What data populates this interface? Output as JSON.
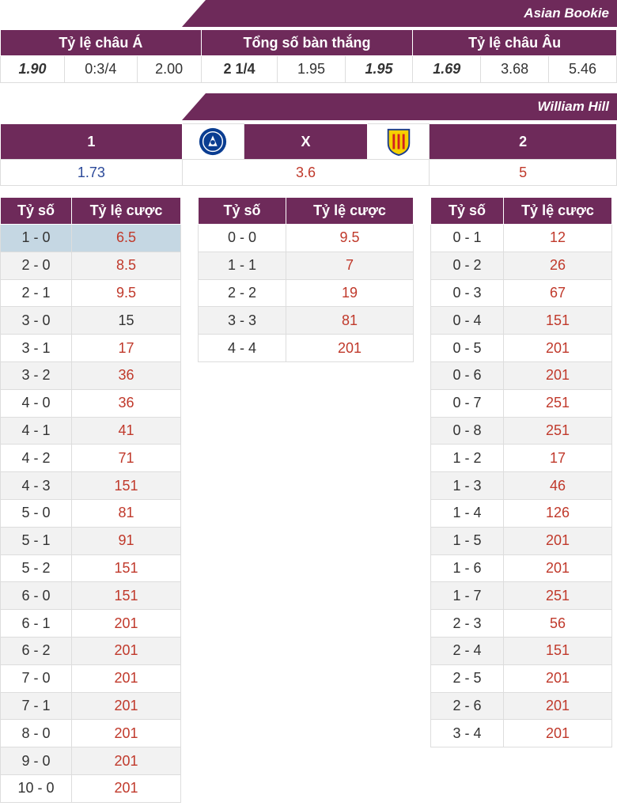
{
  "asian_bookie": {
    "title": "Asian Bookie",
    "headers": [
      "Tỷ lệ châu Á",
      "Tổng số bàn thắng",
      "Tỷ lệ châu Âu"
    ],
    "asian": [
      "1.90",
      "0:3/4",
      "2.00"
    ],
    "total": [
      "2 1/4",
      "1.95",
      "1.95"
    ],
    "euro": [
      "1.69",
      "3.68",
      "5.46"
    ]
  },
  "william_hill": {
    "title": "William Hill",
    "home_label": "1",
    "draw_label": "X",
    "away_label": "2",
    "home_logo": "chelsea-crest-icon",
    "away_logo": "villarreal-crest-icon",
    "home_odd": "1.73",
    "draw_odd": "3.6",
    "away_odd": "5"
  },
  "score_headers": {
    "score": "Tỷ số",
    "odds": "Tỷ lệ cược"
  },
  "home_wins": [
    {
      "score": "1 - 0",
      "odd": "6.5"
    },
    {
      "score": "2 - 0",
      "odd": "8.5"
    },
    {
      "score": "2 - 1",
      "odd": "9.5"
    },
    {
      "score": "3 - 0",
      "odd": "15"
    },
    {
      "score": "3 - 1",
      "odd": "17"
    },
    {
      "score": "3 - 2",
      "odd": "36"
    },
    {
      "score": "4 - 0",
      "odd": "36"
    },
    {
      "score": "4 - 1",
      "odd": "41"
    },
    {
      "score": "4 - 2",
      "odd": "71"
    },
    {
      "score": "4 - 3",
      "odd": "151"
    },
    {
      "score": "5 - 0",
      "odd": "81"
    },
    {
      "score": "5 - 1",
      "odd": "91"
    },
    {
      "score": "5 - 2",
      "odd": "151"
    },
    {
      "score": "6 - 0",
      "odd": "151"
    },
    {
      "score": "6 - 1",
      "odd": "201"
    },
    {
      "score": "6 - 2",
      "odd": "201"
    },
    {
      "score": "7 - 0",
      "odd": "201"
    },
    {
      "score": "7 - 1",
      "odd": "201"
    },
    {
      "score": "8 - 0",
      "odd": "201"
    },
    {
      "score": "9 - 0",
      "odd": "201"
    },
    {
      "score": "10 - 0",
      "odd": "201"
    }
  ],
  "draws": [
    {
      "score": "0 - 0",
      "odd": "9.5"
    },
    {
      "score": "1 - 1",
      "odd": "7"
    },
    {
      "score": "2 - 2",
      "odd": "19"
    },
    {
      "score": "3 - 3",
      "odd": "81"
    },
    {
      "score": "4 - 4",
      "odd": "201"
    }
  ],
  "away_wins": [
    {
      "score": "0 - 1",
      "odd": "12"
    },
    {
      "score": "0 - 2",
      "odd": "26"
    },
    {
      "score": "0 - 3",
      "odd": "67"
    },
    {
      "score": "0 - 4",
      "odd": "151"
    },
    {
      "score": "0 - 5",
      "odd": "201"
    },
    {
      "score": "0 - 6",
      "odd": "201"
    },
    {
      "score": "0 - 7",
      "odd": "251"
    },
    {
      "score": "0 - 8",
      "odd": "251"
    },
    {
      "score": "1 - 2",
      "odd": "17"
    },
    {
      "score": "1 - 3",
      "odd": "46"
    },
    {
      "score": "1 - 4",
      "odd": "126"
    },
    {
      "score": "1 - 5",
      "odd": "201"
    },
    {
      "score": "1 - 6",
      "odd": "201"
    },
    {
      "score": "1 - 7",
      "odd": "251"
    },
    {
      "score": "2 - 3",
      "odd": "56"
    },
    {
      "score": "2 - 4",
      "odd": "151"
    },
    {
      "score": "2 - 5",
      "odd": "201"
    },
    {
      "score": "2 - 6",
      "odd": "201"
    },
    {
      "score": "3 - 4",
      "odd": "201"
    }
  ],
  "colors": {
    "header": "#6e2a5a",
    "odd_red": "#c0392b",
    "selected_row": "#c5d7e3"
  }
}
